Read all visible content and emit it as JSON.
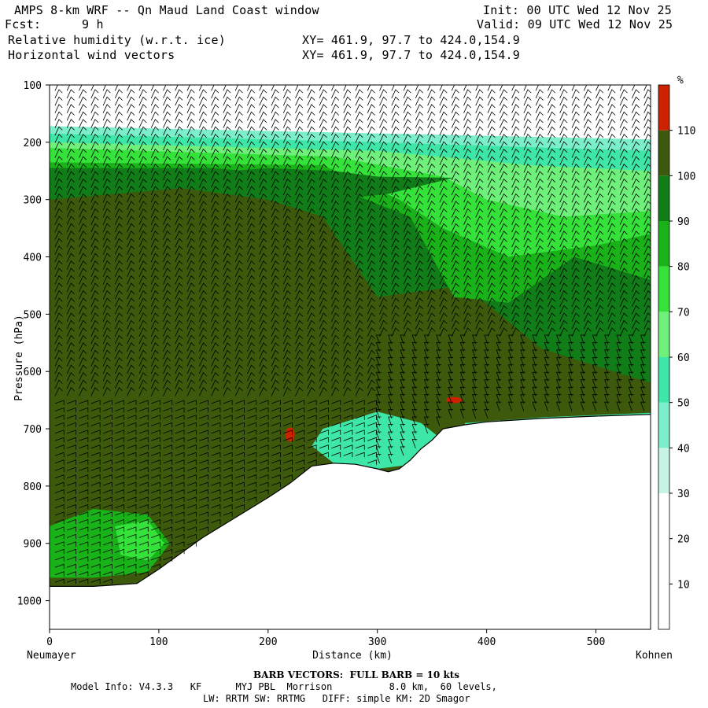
{
  "header": {
    "title": "AMPS 8-km WRF -- Qn Maud Land Coast window",
    "init": "Init: 00 UTC Wed 12 Nov 25",
    "fcst_label": "Fcst:",
    "fcst_value": "9 h",
    "valid": "Valid: 09 UTC Wed 12 Nov 25",
    "field1": "Relative humidity (w.r.t. ice)",
    "field2": "Horizontal wind vectors",
    "xy1": "XY= 461.9, 97.7 to 424.0,154.9",
    "xy2": "XY= 461.9, 97.7 to 424.0,154.9"
  },
  "footer": {
    "barb_note": "BARB VECTORS:  FULL BARB = 10 kts",
    "model_info": "Model Info: V4.3.3   KF      MYJ PBL  Morrison          8.0 km,  60 levels,",
    "physics": "LW: RRTM SW: RRTMG   DIFF: simple KM: 2D Smagor"
  },
  "chart_data": {
    "type": "heatmap",
    "xlabel": "Distance (km)",
    "ylabel": "Pressure (hPa)",
    "xlim": [
      0,
      550
    ],
    "ylim": [
      1050,
      100
    ],
    "x_ticks": [
      0,
      100,
      200,
      300,
      400,
      500
    ],
    "y_ticks": [
      100,
      200,
      300,
      400,
      500,
      600,
      700,
      800,
      900,
      1000
    ],
    "x_left_label": "Neumayer",
    "x_right_label": "Kohnen",
    "colorbar": {
      "unit": "%",
      "levels": [
        10,
        20,
        30,
        40,
        50,
        60,
        70,
        80,
        90,
        100,
        110
      ],
      "colors": [
        "#ffffff",
        "#ffffff",
        "#ffffff",
        "#c8f5e3",
        "#7deecb",
        "#3ee6a8",
        "#6ef07a",
        "#35e23a",
        "#19b319",
        "#117d18",
        "#3d5a0c",
        "#cc2200"
      ]
    },
    "terrain_surface_hpa": {
      "x": [
        0,
        40,
        80,
        100,
        140,
        170,
        200,
        220,
        240,
        260,
        280,
        300,
        310,
        320,
        330,
        340,
        350,
        360,
        380,
        400,
        450,
        500,
        550
      ],
      "p": [
        975,
        975,
        970,
        945,
        890,
        855,
        820,
        795,
        765,
        760,
        762,
        770,
        775,
        770,
        755,
        735,
        720,
        700,
        693,
        688,
        682,
        678,
        675
      ]
    },
    "rh_regions": [
      {
        "level": 30,
        "description": "upper dry layer",
        "p_range": [
          100,
          175
        ]
      },
      {
        "level": 60,
        "description": "moist band near 200-300 hPa"
      },
      {
        "level": 105,
        "description": "saturated mid-lower troposphere (left and center)"
      },
      {
        "level": 115,
        "description": "supersaturated pockets",
        "locations": [
          [
            220,
            710
          ],
          [
            370,
            650
          ]
        ]
      }
    ]
  }
}
